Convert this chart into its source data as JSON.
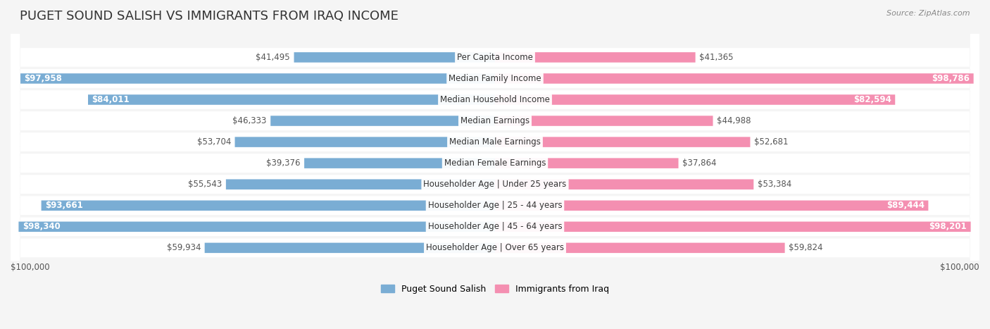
{
  "title": "PUGET SOUND SALISH VS IMMIGRANTS FROM IRAQ INCOME",
  "source": "Source: ZipAtlas.com",
  "categories": [
    "Per Capita Income",
    "Median Family Income",
    "Median Household Income",
    "Median Earnings",
    "Median Male Earnings",
    "Median Female Earnings",
    "Householder Age | Under 25 years",
    "Householder Age | 25 - 44 years",
    "Householder Age | 45 - 64 years",
    "Householder Age | Over 65 years"
  ],
  "left_values": [
    41495,
    97958,
    84011,
    46333,
    53704,
    39376,
    55543,
    93661,
    98340,
    59934
  ],
  "right_values": [
    41365,
    98786,
    82594,
    44988,
    52681,
    37864,
    53384,
    89444,
    98201,
    59824
  ],
  "left_labels": [
    "$41,495",
    "$97,958",
    "$84,011",
    "$46,333",
    "$53,704",
    "$39,376",
    "$55,543",
    "$93,661",
    "$98,340",
    "$59,934"
  ],
  "right_labels": [
    "$41,365",
    "$98,786",
    "$82,594",
    "$44,988",
    "$52,681",
    "$37,864",
    "$53,384",
    "$89,444",
    "$98,201",
    "$59,824"
  ],
  "max_value": 100000,
  "left_color": "#7aadd4",
  "right_color": "#f48fb1",
  "left_color_dark": "#5a8fbf",
  "right_color_dark": "#e06090",
  "legend_left": "Puget Sound Salish",
  "legend_right": "Immigrants from Iraq",
  "background_color": "#f5f5f5",
  "row_bg_color": "#ffffff",
  "title_fontsize": 13,
  "label_fontsize": 8.5,
  "category_fontsize": 8.5
}
